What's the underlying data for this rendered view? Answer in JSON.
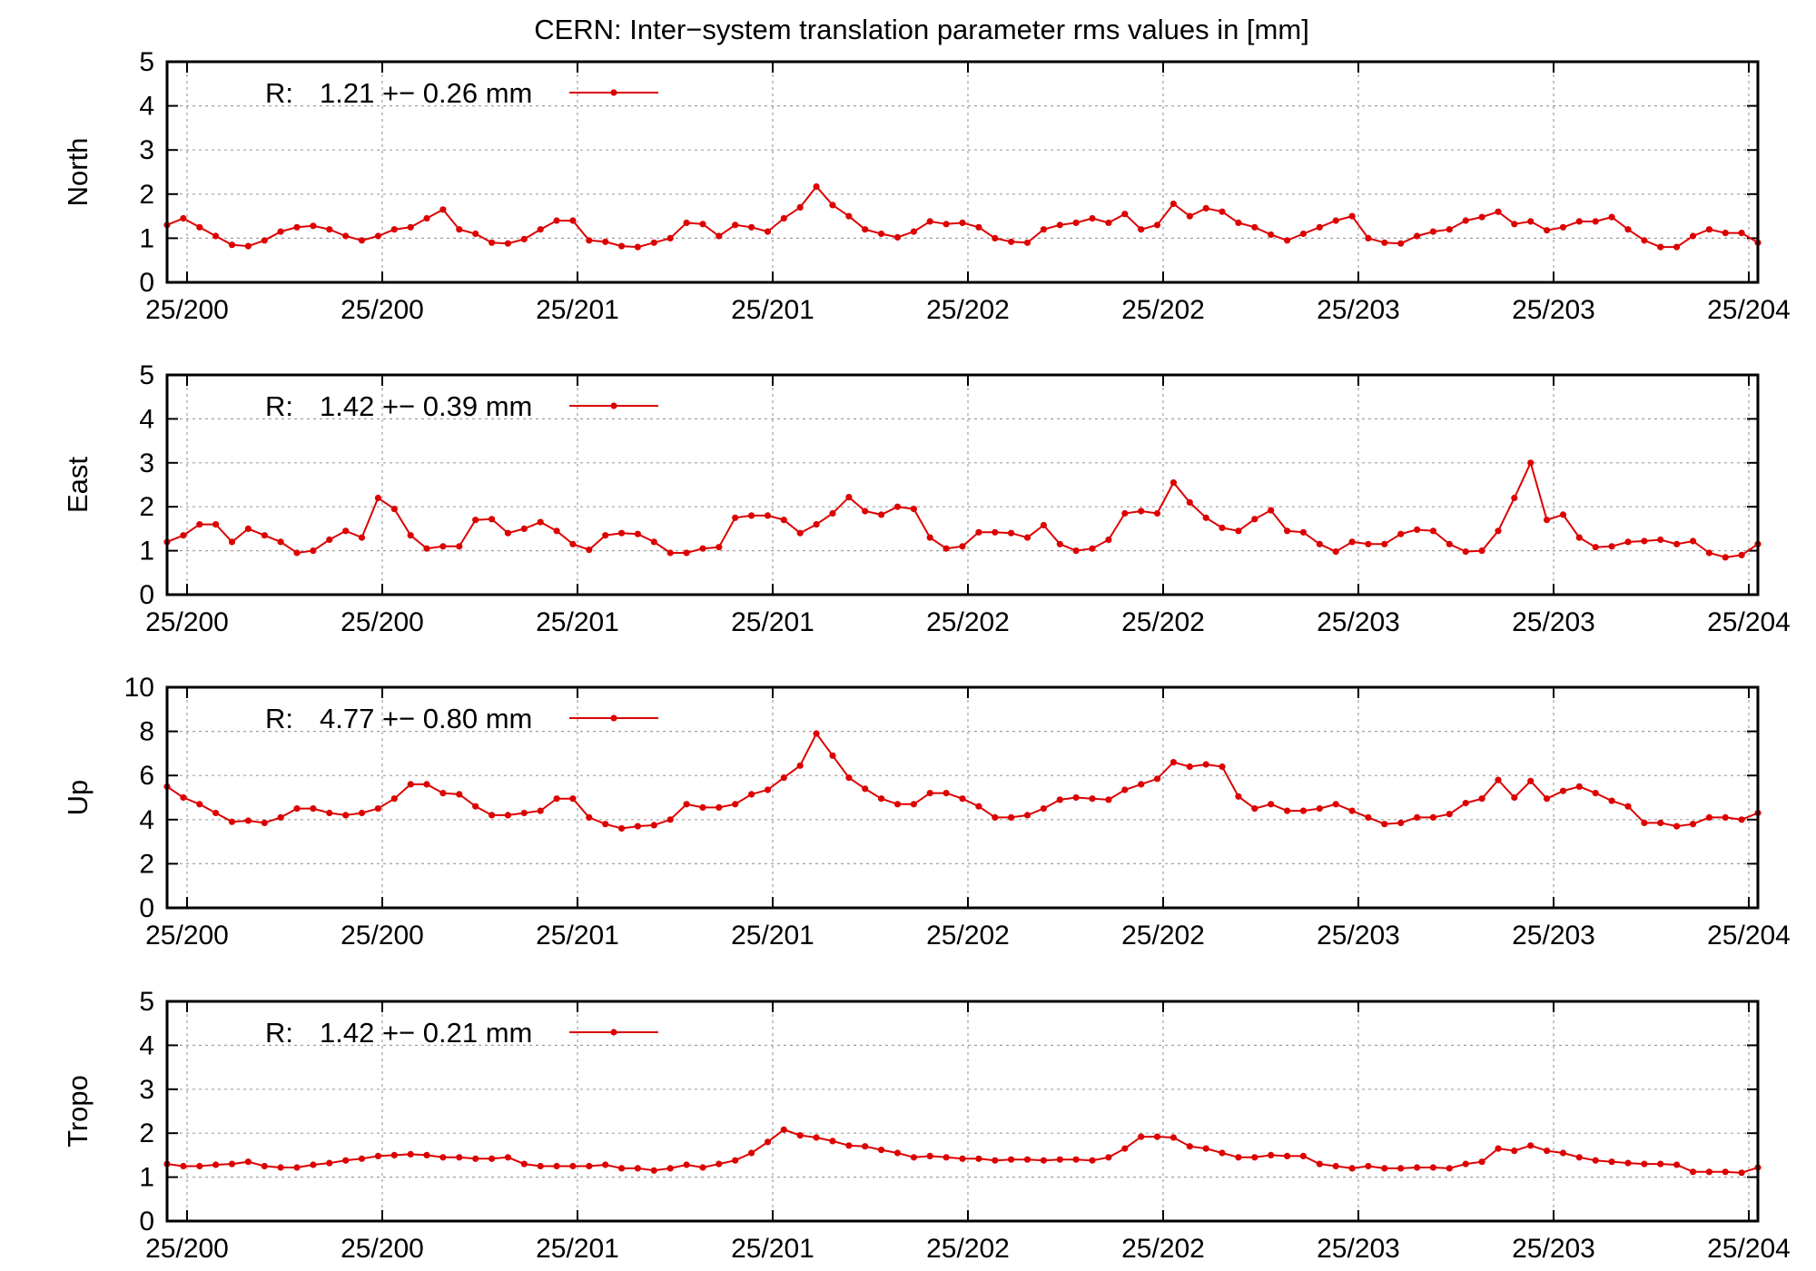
{
  "chart_data": {
    "type": "line",
    "title": "CERN: Inter−system translation parameter rms values in [mm]",
    "xlabel": "",
    "x_tick_labels": [
      "25/200",
      "25/200",
      "25/201",
      "25/201",
      "25/202",
      "25/202",
      "25/203",
      "25/203",
      "25/204"
    ],
    "series_color": "#dd0000",
    "grid": true,
    "panels": [
      {
        "ylabel": "North",
        "ylim": [
          0,
          5
        ],
        "y_ticks": [
          0,
          1,
          2,
          3,
          4,
          5
        ],
        "legend": {
          "prefix": "R:",
          "text": "1.21 +− 0.26 mm"
        },
        "series": [
          {
            "name": "R",
            "values": [
              1.3,
              1.45,
              1.25,
              1.05,
              0.85,
              0.82,
              0.95,
              1.15,
              1.25,
              1.28,
              1.2,
              1.05,
              0.95,
              1.05,
              1.2,
              1.25,
              1.45,
              1.65,
              1.2,
              1.1,
              0.9,
              0.88,
              0.98,
              1.2,
              1.4,
              1.4,
              0.95,
              0.92,
              0.82,
              0.8,
              0.9,
              1.0,
              1.35,
              1.32,
              1.05,
              1.3,
              1.25,
              1.15,
              1.45,
              1.7,
              2.17,
              1.75,
              1.5,
              1.2,
              1.1,
              1.02,
              1.15,
              1.38,
              1.32,
              1.35,
              1.25,
              1.0,
              0.92,
              0.9,
              1.2,
              1.3,
              1.35,
              1.45,
              1.35,
              1.55,
              1.2,
              1.3,
              1.78,
              1.5,
              1.68,
              1.6,
              1.35,
              1.25,
              1.08,
              0.95,
              1.1,
              1.25,
              1.4,
              1.5,
              1.0,
              0.9,
              0.88,
              1.05,
              1.15,
              1.2,
              1.4,
              1.48,
              1.6,
              1.32,
              1.38,
              1.18,
              1.25,
              1.38,
              1.38,
              1.48,
              1.2,
              0.95,
              0.8,
              0.8,
              1.05,
              1.2,
              1.12,
              1.12,
              0.9
            ]
          }
        ]
      },
      {
        "ylabel": "East",
        "ylim": [
          0,
          5
        ],
        "y_ticks": [
          0,
          1,
          2,
          3,
          4,
          5
        ],
        "legend": {
          "prefix": "R:",
          "text": "1.42 +− 0.39 mm"
        },
        "series": [
          {
            "name": "R",
            "values": [
              1.2,
              1.35,
              1.6,
              1.6,
              1.2,
              1.5,
              1.35,
              1.2,
              0.95,
              1.0,
              1.25,
              1.45,
              1.3,
              2.2,
              1.95,
              1.35,
              1.05,
              1.1,
              1.1,
              1.7,
              1.72,
              1.4,
              1.5,
              1.65,
              1.45,
              1.15,
              1.02,
              1.35,
              1.4,
              1.38,
              1.2,
              0.95,
              0.95,
              1.05,
              1.08,
              1.75,
              1.8,
              1.8,
              1.7,
              1.4,
              1.6,
              1.85,
              2.22,
              1.9,
              1.82,
              2.0,
              1.95,
              1.3,
              1.05,
              1.1,
              1.42,
              1.42,
              1.4,
              1.3,
              1.58,
              1.15,
              1.0,
              1.05,
              1.25,
              1.85,
              1.9,
              1.85,
              2.55,
              2.1,
              1.75,
              1.52,
              1.45,
              1.72,
              1.92,
              1.45,
              1.42,
              1.15,
              0.98,
              1.2,
              1.15,
              1.15,
              1.38,
              1.48,
              1.45,
              1.15,
              0.98,
              1.0,
              1.45,
              2.2,
              3.0,
              1.7,
              1.82,
              1.3,
              1.08,
              1.1,
              1.2,
              1.22,
              1.25,
              1.15,
              1.22,
              0.95,
              0.85,
              0.9,
              1.15
            ]
          }
        ]
      },
      {
        "ylabel": "Up",
        "ylim": [
          0,
          10
        ],
        "y_ticks": [
          0,
          2,
          4,
          6,
          8,
          10
        ],
        "legend": {
          "prefix": "R:",
          "text": "4.77 +− 0.80 mm"
        },
        "series": [
          {
            "name": "R",
            "values": [
              5.5,
              5.0,
              4.7,
              4.3,
              3.9,
              3.95,
              3.85,
              4.1,
              4.5,
              4.5,
              4.3,
              4.2,
              4.3,
              4.5,
              4.95,
              5.6,
              5.6,
              5.2,
              5.15,
              4.6,
              4.2,
              4.2,
              4.3,
              4.4,
              4.95,
              4.95,
              4.1,
              3.8,
              3.6,
              3.7,
              3.75,
              4.0,
              4.7,
              4.55,
              4.55,
              4.7,
              5.15,
              5.35,
              5.9,
              6.45,
              7.9,
              6.9,
              5.9,
              5.4,
              4.95,
              4.7,
              4.7,
              5.2,
              5.2,
              4.95,
              4.6,
              4.1,
              4.1,
              4.2,
              4.5,
              4.9,
              5.0,
              4.95,
              4.9,
              5.35,
              5.6,
              5.85,
              6.6,
              6.4,
              6.5,
              6.4,
              5.05,
              4.5,
              4.7,
              4.4,
              4.4,
              4.5,
              4.7,
              4.4,
              4.1,
              3.8,
              3.85,
              4.1,
              4.1,
              4.25,
              4.75,
              4.95,
              5.8,
              5.0,
              5.75,
              4.95,
              5.3,
              5.5,
              5.2,
              4.85,
              4.6,
              3.85,
              3.85,
              3.7,
              3.8,
              4.1,
              4.1,
              4.0,
              4.3
            ]
          }
        ]
      },
      {
        "ylabel": "Tropo",
        "ylim": [
          0,
          5
        ],
        "y_ticks": [
          0,
          1,
          2,
          3,
          4,
          5
        ],
        "legend": {
          "prefix": "R:",
          "text": "1.42 +− 0.21 mm"
        },
        "series": [
          {
            "name": "R",
            "values": [
              1.3,
              1.25,
              1.25,
              1.28,
              1.3,
              1.35,
              1.25,
              1.22,
              1.22,
              1.28,
              1.32,
              1.38,
              1.42,
              1.48,
              1.5,
              1.52,
              1.5,
              1.45,
              1.45,
              1.42,
              1.42,
              1.45,
              1.3,
              1.25,
              1.25,
              1.25,
              1.25,
              1.28,
              1.2,
              1.2,
              1.15,
              1.2,
              1.28,
              1.22,
              1.3,
              1.38,
              1.55,
              1.8,
              2.08,
              1.95,
              1.9,
              1.82,
              1.72,
              1.7,
              1.62,
              1.55,
              1.45,
              1.48,
              1.45,
              1.42,
              1.42,
              1.38,
              1.4,
              1.4,
              1.38,
              1.4,
              1.4,
              1.38,
              1.45,
              1.65,
              1.92,
              1.92,
              1.9,
              1.7,
              1.65,
              1.55,
              1.45,
              1.45,
              1.5,
              1.48,
              1.48,
              1.3,
              1.25,
              1.2,
              1.25,
              1.2,
              1.2,
              1.22,
              1.22,
              1.2,
              1.3,
              1.35,
              1.65,
              1.6,
              1.72,
              1.6,
              1.55,
              1.45,
              1.38,
              1.35,
              1.32,
              1.3,
              1.3,
              1.28,
              1.12,
              1.12,
              1.12,
              1.1,
              1.22
            ]
          }
        ]
      }
    ]
  }
}
